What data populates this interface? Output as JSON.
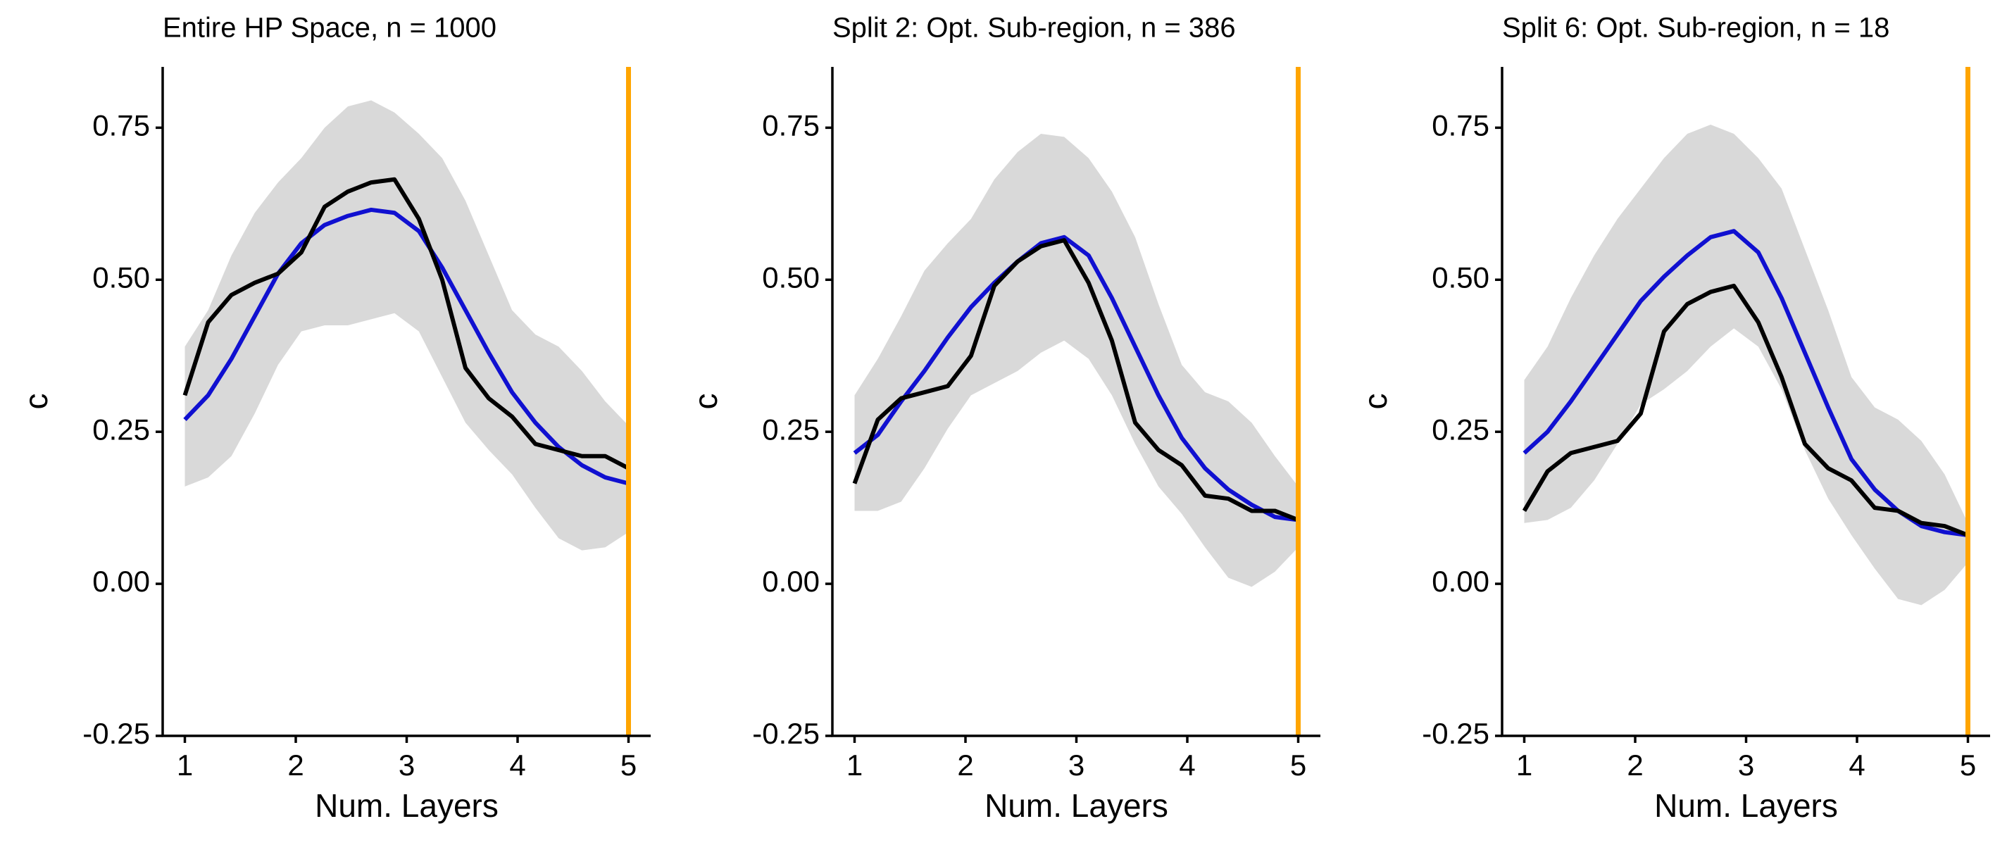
{
  "chart_data": [
    {
      "type": "line",
      "title": "Entire HP Space, n = 1000",
      "xlabel": "Num. Layers",
      "ylabel": "c",
      "x": [
        1,
        1.21,
        1.42,
        1.63,
        1.84,
        2.05,
        2.26,
        2.47,
        2.68,
        2.89,
        3.11,
        3.32,
        3.53,
        3.74,
        3.95,
        4.16,
        4.37,
        4.58,
        4.79,
        5
      ],
      "band": {
        "color": "#d9d9d9",
        "upper": [
          0.39,
          0.45,
          0.54,
          0.61,
          0.66,
          0.7,
          0.75,
          0.785,
          0.795,
          0.775,
          0.74,
          0.7,
          0.63,
          0.54,
          0.45,
          0.41,
          0.39,
          0.35,
          0.3,
          0.26
        ],
        "lower": [
          0.16,
          0.175,
          0.21,
          0.28,
          0.36,
          0.415,
          0.425,
          0.425,
          0.435,
          0.445,
          0.415,
          0.34,
          0.265,
          0.22,
          0.18,
          0.125,
          0.075,
          0.055,
          0.06,
          0.085
        ]
      },
      "series": [
        {
          "color": "#1010d0",
          "values": [
            0.27,
            0.31,
            0.37,
            0.44,
            0.51,
            0.56,
            0.59,
            0.605,
            0.615,
            0.61,
            0.58,
            0.52,
            0.45,
            0.38,
            0.315,
            0.265,
            0.225,
            0.195,
            0.175,
            0.165
          ]
        },
        {
          "color": "#000000",
          "values": [
            0.31,
            0.43,
            0.475,
            0.495,
            0.51,
            0.545,
            0.62,
            0.645,
            0.66,
            0.665,
            0.6,
            0.5,
            0.355,
            0.305,
            0.275,
            0.23,
            0.22,
            0.21,
            0.21,
            0.19
          ]
        }
      ],
      "vline": {
        "value": 5,
        "color": "#FFA500"
      },
      "xlim": [
        0.8,
        5.2
      ],
      "xticks": [
        1,
        2,
        3,
        4,
        5
      ],
      "ylim": [
        -0.25,
        0.85
      ],
      "yticks": [
        -0.25,
        {
          "value": 0,
          "label": "0.00"
        },
        0.25,
        {
          "value": 0.5,
          "label": "0.50"
        },
        0.75
      ]
    },
    {
      "type": "line",
      "title": "Split 2: Opt. Sub-region, n = 386",
      "xlabel": "Num. Layers",
      "ylabel": "c",
      "x": [
        1,
        1.21,
        1.42,
        1.63,
        1.84,
        2.05,
        2.26,
        2.47,
        2.68,
        2.89,
        3.11,
        3.32,
        3.53,
        3.74,
        3.95,
        4.16,
        4.37,
        4.58,
        4.79,
        5
      ],
      "band": {
        "color": "#d9d9d9",
        "upper": [
          0.31,
          0.37,
          0.44,
          0.515,
          0.56,
          0.6,
          0.665,
          0.71,
          0.74,
          0.735,
          0.7,
          0.645,
          0.57,
          0.46,
          0.36,
          0.315,
          0.3,
          0.265,
          0.21,
          0.16
        ],
        "lower": [
          0.12,
          0.12,
          0.135,
          0.19,
          0.255,
          0.31,
          0.33,
          0.35,
          0.38,
          0.4,
          0.37,
          0.31,
          0.23,
          0.16,
          0.115,
          0.06,
          0.01,
          -0.005,
          0.02,
          0.06
        ]
      },
      "series": [
        {
          "color": "#1010d0",
          "values": [
            0.215,
            0.245,
            0.3,
            0.35,
            0.405,
            0.455,
            0.495,
            0.53,
            0.56,
            0.57,
            0.54,
            0.47,
            0.39,
            0.31,
            0.24,
            0.19,
            0.155,
            0.13,
            0.11,
            0.105
          ]
        },
        {
          "color": "#000000",
          "values": [
            0.165,
            0.27,
            0.305,
            0.315,
            0.325,
            0.375,
            0.49,
            0.53,
            0.555,
            0.565,
            0.495,
            0.4,
            0.265,
            0.22,
            0.195,
            0.145,
            0.14,
            0.12,
            0.12,
            0.105
          ]
        }
      ],
      "vline": {
        "value": 5,
        "color": "#FFA500"
      },
      "xlim": [
        0.8,
        5.2
      ],
      "xticks": [
        1,
        2,
        3,
        4,
        5
      ],
      "ylim": [
        -0.25,
        0.85
      ],
      "yticks": [
        -0.25,
        {
          "value": 0,
          "label": "0.00"
        },
        0.25,
        {
          "value": 0.5,
          "label": "0.50"
        },
        0.75
      ]
    },
    {
      "type": "line",
      "title": "Split 6: Opt. Sub-region, n = 18",
      "xlabel": "Num. Layers",
      "ylabel": "c",
      "x": [
        1,
        1.21,
        1.42,
        1.63,
        1.84,
        2.05,
        2.26,
        2.47,
        2.68,
        2.89,
        3.11,
        3.32,
        3.53,
        3.74,
        3.95,
        4.16,
        4.37,
        4.58,
        4.79,
        5
      ],
      "band": {
        "color": "#d9d9d9",
        "upper": [
          0.335,
          0.39,
          0.47,
          0.54,
          0.6,
          0.65,
          0.7,
          0.74,
          0.755,
          0.74,
          0.7,
          0.65,
          0.55,
          0.45,
          0.34,
          0.29,
          0.27,
          0.235,
          0.18,
          0.1
        ],
        "lower": [
          0.1,
          0.105,
          0.125,
          0.17,
          0.23,
          0.295,
          0.32,
          0.35,
          0.39,
          0.42,
          0.39,
          0.32,
          0.22,
          0.14,
          0.08,
          0.025,
          -0.025,
          -0.035,
          -0.01,
          0.035
        ]
      },
      "series": [
        {
          "color": "#1010d0",
          "values": [
            0.215,
            0.25,
            0.3,
            0.355,
            0.41,
            0.465,
            0.505,
            0.54,
            0.57,
            0.58,
            0.545,
            0.47,
            0.38,
            0.29,
            0.205,
            0.155,
            0.12,
            0.095,
            0.085,
            0.08
          ]
        },
        {
          "color": "#000000",
          "values": [
            0.12,
            0.185,
            0.215,
            0.225,
            0.235,
            0.28,
            0.415,
            0.46,
            0.48,
            0.49,
            0.43,
            0.34,
            0.23,
            0.19,
            0.17,
            0.125,
            0.12,
            0.1,
            0.095,
            0.08
          ]
        }
      ],
      "vline": {
        "value": 5,
        "color": "#FFA500"
      },
      "xlim": [
        0.8,
        5.2
      ],
      "xticks": [
        1,
        2,
        3,
        4,
        5
      ],
      "ylim": [
        -0.25,
        0.85
      ],
      "yticks": [
        -0.25,
        {
          "value": 0,
          "label": "0.00"
        },
        0.25,
        {
          "value": 0.5,
          "label": "0.50"
        },
        0.75
      ]
    }
  ]
}
